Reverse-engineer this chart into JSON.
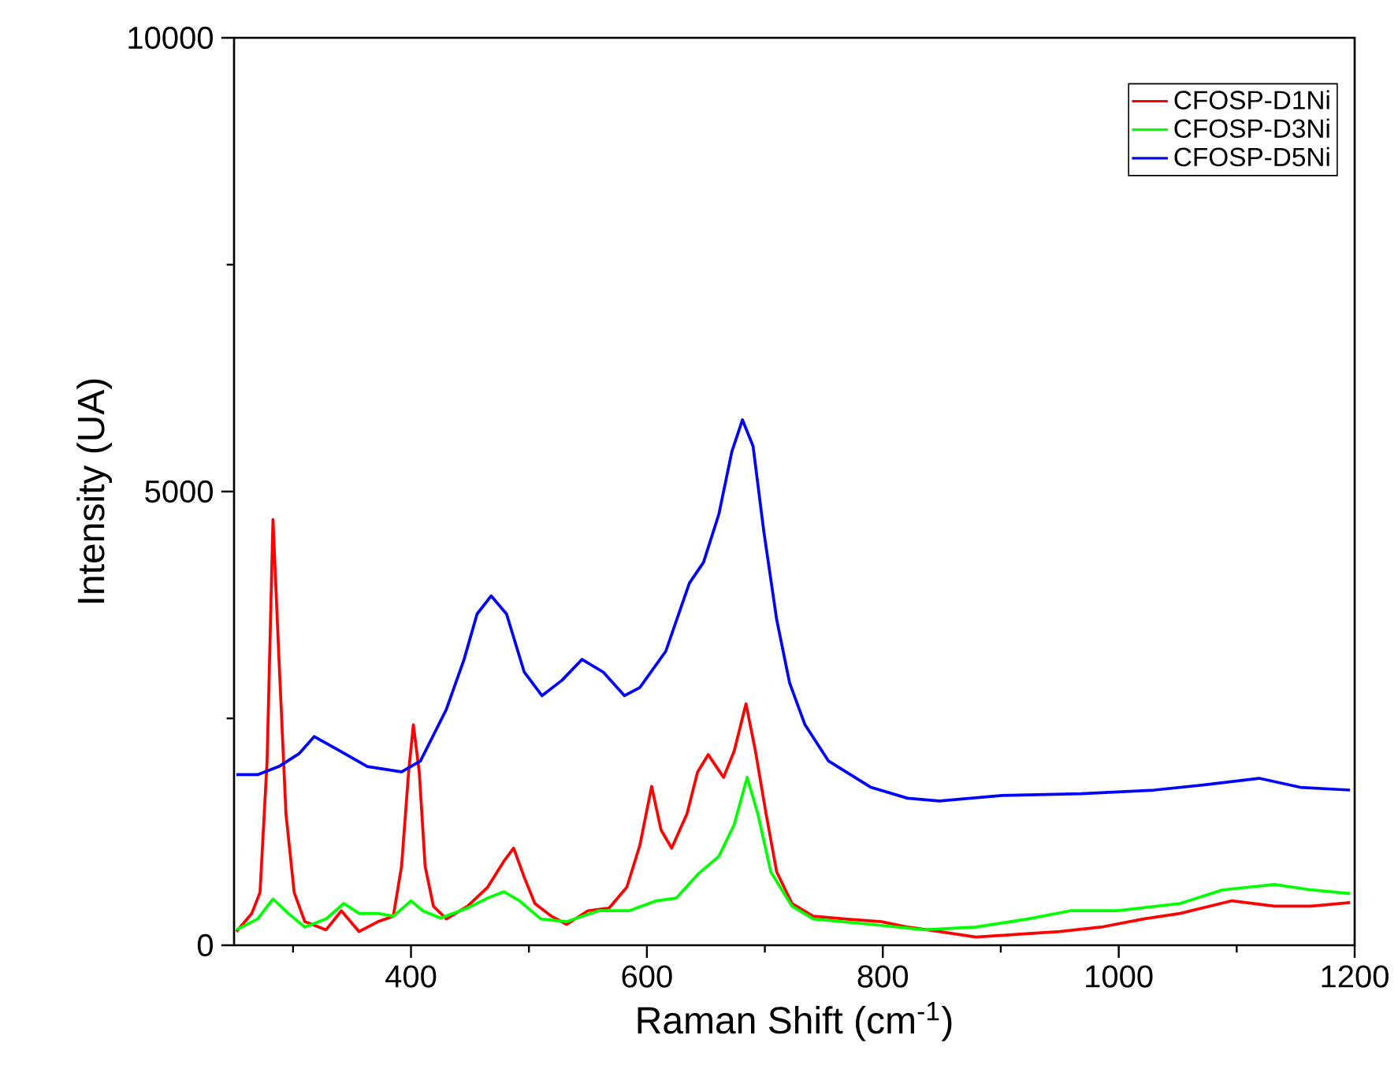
{
  "chart_data": {
    "type": "line",
    "xlabel": "Raman Shift (cm$^{-1}$)",
    "ylabel": "Intensity (UA)",
    "xlim": [
      250,
      1200
    ],
    "ylim": [
      0,
      10000
    ],
    "xticks": [
      {
        "value": 300,
        "label": null
      },
      400,
      {
        "value": 500,
        "label": null
      },
      600,
      {
        "value": 700,
        "label": null
      },
      800,
      {
        "value": 900,
        "label": null
      },
      1000,
      {
        "value": 1100,
        "label": null
      },
      1200
    ],
    "yticks": [
      0,
      {
        "value": 2500,
        "label": null
      },
      5000,
      {
        "value": 7500,
        "label": null
      },
      10000
    ],
    "grid": false,
    "legend": "top right",
    "marker": "none",
    "line_style": "solid",
    "series": [
      {
        "name": "CFOSP-D1Ni",
        "color": "#ff0000",
        "x": [
          252,
          265,
          272,
          278,
          283,
          288,
          294,
          301,
          310,
          328,
          341,
          356,
          372,
          385,
          392,
          398,
          402,
          407,
          412,
          419,
          430,
          448,
          465,
          479,
          487,
          496,
          505,
          519,
          532,
          550,
          568,
          583,
          594,
          604,
          612,
          621,
          634,
          643,
          652,
          665,
          674,
          684,
          692,
          701,
          710,
          723,
          741,
          768,
          799,
          821,
          848,
          879,
          914,
          950,
          985,
          1021,
          1052,
          1096,
          1132,
          1163,
          1196
        ],
        "values": [
          150,
          350,
          580,
          2030,
          4690,
          3180,
          1450,
          580,
          260,
          170,
          380,
          150,
          260,
          320,
          870,
          1910,
          2430,
          1910,
          870,
          430,
          290,
          430,
          640,
          930,
          1070,
          750,
          460,
          320,
          230,
          380,
          410,
          640,
          1100,
          1750,
          1270,
          1070,
          1450,
          1910,
          2100,
          1850,
          2140,
          2660,
          2140,
          1450,
          810,
          460,
          320,
          290,
          260,
          200,
          150,
          90,
          120,
          150,
          200,
          290,
          350,
          490,
          430,
          430,
          470
        ]
      },
      {
        "name": "CFOSP-D3Ni",
        "color": "#00ff00",
        "x": [
          252,
          270,
          283,
          296,
          310,
          328,
          343,
          356,
          372,
          385,
          400,
          410,
          425,
          448,
          465,
          479,
          492,
          510,
          532,
          559,
          585,
          608,
          625,
          643,
          661,
          674,
          685,
          694,
          705,
          723,
          741,
          790,
          835,
          879,
          923,
          959,
          999,
          1052,
          1088,
          1132,
          1163,
          1196
        ],
        "values": [
          170,
          290,
          510,
          350,
          200,
          290,
          460,
          350,
          350,
          320,
          490,
          380,
          300,
          410,
          520,
          590,
          490,
          290,
          260,
          380,
          380,
          490,
          520,
          780,
          980,
          1330,
          1850,
          1450,
          810,
          430,
          290,
          230,
          170,
          200,
          290,
          380,
          380,
          460,
          610,
          670,
          610,
          570
        ]
      },
      {
        "name": "CFOSP-D5Ni",
        "color": "#0000ff",
        "x": [
          252,
          270,
          288,
          305,
          318,
          336,
          363,
          392,
          408,
          430,
          445,
          456,
          468,
          481,
          496,
          511,
          528,
          545,
          563,
          581,
          594,
          616,
          636,
          648,
          661,
          672,
          681,
          690,
          699,
          710,
          721,
          734,
          754,
          790,
          821,
          848,
          901,
          968,
          1030,
          1074,
          1119,
          1154,
          1196
        ],
        "values": [
          1880,
          1880,
          1970,
          2110,
          2300,
          2170,
          1970,
          1910,
          2030,
          2600,
          3150,
          3650,
          3850,
          3650,
          3010,
          2750,
          2920,
          3150,
          3010,
          2750,
          2840,
          3240,
          3990,
          4220,
          4750,
          5440,
          5790,
          5500,
          4570,
          3590,
          2890,
          2430,
          2030,
          1740,
          1620,
          1590,
          1650,
          1670,
          1710,
          1770,
          1840,
          1740,
          1710
        ]
      }
    ]
  }
}
